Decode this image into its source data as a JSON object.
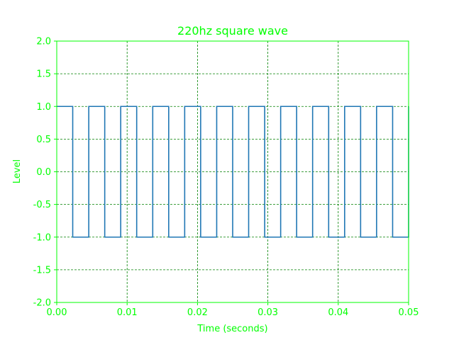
{
  "colors": {
    "axis": "#00ff00",
    "grid": "#008000",
    "series": "#1f77b4",
    "background": "#ffffff"
  },
  "chart_data": {
    "type": "line",
    "title": "220hz square wave",
    "xlabel": "Time (seconds)",
    "ylabel": "Level",
    "xlim": [
      0,
      0.05
    ],
    "ylim": [
      -2.0,
      2.0
    ],
    "grid": true,
    "grid_style": "dashed",
    "line_style": "steps",
    "x_ticks": [
      "0.00",
      "0.01",
      "0.02",
      "0.03",
      "0.04",
      "0.05"
    ],
    "y_ticks": [
      "-2.0",
      "-1.5",
      "-1.0",
      "-0.5",
      "0.0",
      "0.5",
      "1.0",
      "1.5",
      "2.0"
    ],
    "series": [
      {
        "frequency_hz": 220,
        "x": [
          0.0,
          0.00227,
          0.00227,
          0.00455,
          0.00455,
          0.00682,
          0.00682,
          0.00909,
          0.00909,
          0.01136,
          0.01136,
          0.01364,
          0.01364,
          0.01591,
          0.01591,
          0.01818,
          0.01818,
          0.02045,
          0.02045,
          0.02273,
          0.02273,
          0.025,
          0.025,
          0.02727,
          0.02727,
          0.02955,
          0.02955,
          0.03182,
          0.03182,
          0.03409,
          0.03409,
          0.03636,
          0.03636,
          0.03864,
          0.03864,
          0.04091,
          0.04091,
          0.04318,
          0.04318,
          0.04545,
          0.04545,
          0.04773,
          0.04773,
          0.05,
          0.05
        ],
        "y": [
          1,
          1,
          -1,
          -1,
          1,
          1,
          -1,
          -1,
          1,
          1,
          -1,
          -1,
          1,
          1,
          -1,
          -1,
          1,
          1,
          -1,
          -1,
          1,
          1,
          -1,
          -1,
          1,
          1,
          -1,
          -1,
          1,
          1,
          -1,
          -1,
          1,
          1,
          -1,
          -1,
          1,
          1,
          -1,
          -1,
          1,
          1,
          -1,
          -1,
          1
        ]
      }
    ]
  }
}
